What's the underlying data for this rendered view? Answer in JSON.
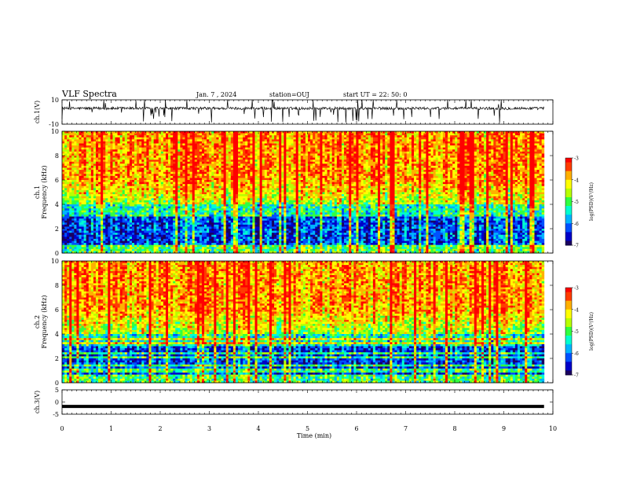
{
  "header": {
    "title": "VLF Spectra",
    "date": "Jan. 7 , 2024",
    "station": "station=OUJ",
    "start": "start UT =  22: 50: 0"
  },
  "colors": {
    "colormap": [
      "#1a0060",
      "#0000c8",
      "#0050ff",
      "#00b4ff",
      "#00ffd0",
      "#30ff40",
      "#b8ff00",
      "#ffff00",
      "#ffb000",
      "#ff3c00",
      "#ff0000"
    ],
    "trace": "#000000",
    "frame": "#000000"
  },
  "chart_data": [
    {
      "type": "line",
      "panel": "ch1-waveform",
      "ylabel": "ch.1(V)",
      "ylim": [
        -10,
        10
      ],
      "yticks": [
        "10",
        "-10"
      ],
      "description_series": "dense noise trace centred near 3 V with spikes to about ±10 V",
      "baseline": 3
    },
    {
      "type": "heatmap",
      "panel": "ch1-spectrogram",
      "ylabel": "ch.1\nFrequency (kHz)",
      "ylim": [
        0,
        10
      ],
      "yticks": [
        "0",
        "2",
        "4",
        "6",
        "8",
        "10"
      ],
      "colorbar": {
        "label": "log(PSD)(V²/Hz)",
        "range": [
          -7,
          -3
        ],
        "ticks": [
          "-3",
          "-4",
          "-5",
          "-6",
          "-7"
        ]
      }
    },
    {
      "type": "heatmap",
      "panel": "ch2-spectrogram",
      "ylabel": "ch.2\nFrequency (kHz)",
      "ylim": [
        0,
        10
      ],
      "yticks": [
        "0",
        "2",
        "4",
        "6",
        "8",
        "10"
      ],
      "colorbar": {
        "label": "log(PSD)(V²/Hz)",
        "range": [
          -7,
          -3
        ],
        "ticks": [
          "-3",
          "-4",
          "-5",
          "-6",
          "-7"
        ]
      }
    },
    {
      "type": "line",
      "panel": "ch3-waveform",
      "ylabel": "ch.3(V)",
      "ylim": [
        -5,
        5
      ],
      "yticks": [
        "5",
        "0",
        "-5"
      ],
      "baseline": -1.8
    }
  ],
  "xaxis": {
    "label": "Time  (min)",
    "xlim": [
      0,
      10
    ],
    "ticks": [
      "0",
      "1",
      "2",
      "3",
      "4",
      "5",
      "6",
      "7",
      "8",
      "9",
      "10"
    ],
    "data_end": 9.82
  }
}
